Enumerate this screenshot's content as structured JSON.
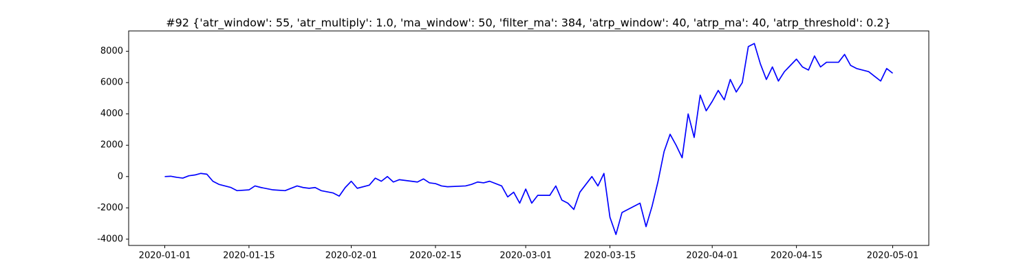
{
  "chart_data": {
    "type": "line",
    "title": "#92 {'atr_window': 55, 'atr_multiply': 1.0, 'ma_window': 50, 'filter_ma': 384, 'atrp_window': 40, 'atrp_ma': 40, 'atrp_threshold': 0.2}",
    "x": [
      "2020-01-01",
      "2020-01-02",
      "2020-01-03",
      "2020-01-04",
      "2020-01-05",
      "2020-01-06",
      "2020-01-07",
      "2020-01-08",
      "2020-01-09",
      "2020-01-10",
      "2020-01-12",
      "2020-01-13",
      "2020-01-15",
      "2020-01-16",
      "2020-01-17",
      "2020-01-19",
      "2020-01-21",
      "2020-01-23",
      "2020-01-24",
      "2020-01-25",
      "2020-01-26",
      "2020-01-27",
      "2020-01-29",
      "2020-01-30",
      "2020-01-31",
      "2020-02-01",
      "2020-02-02",
      "2020-02-04",
      "2020-02-05",
      "2020-02-06",
      "2020-02-07",
      "2020-02-08",
      "2020-02-09",
      "2020-02-12",
      "2020-02-13",
      "2020-02-14",
      "2020-02-15",
      "2020-02-16",
      "2020-02-17",
      "2020-02-20",
      "2020-02-21",
      "2020-02-22",
      "2020-02-23",
      "2020-02-24",
      "2020-02-26",
      "2020-02-27",
      "2020-02-28",
      "2020-02-29",
      "2020-03-01",
      "2020-03-02",
      "2020-03-03",
      "2020-03-05",
      "2020-03-06",
      "2020-03-07",
      "2020-03-08",
      "2020-03-09",
      "2020-03-10",
      "2020-03-12",
      "2020-03-13",
      "2020-03-14",
      "2020-03-15",
      "2020-03-16",
      "2020-03-17",
      "2020-03-20",
      "2020-03-21",
      "2020-03-22",
      "2020-03-23",
      "2020-03-24",
      "2020-03-25",
      "2020-03-26",
      "2020-03-27",
      "2020-03-28",
      "2020-03-29",
      "2020-03-30",
      "2020-03-31",
      "2020-04-01",
      "2020-04-02",
      "2020-04-03",
      "2020-04-04",
      "2020-04-05",
      "2020-04-06",
      "2020-04-07",
      "2020-04-08",
      "2020-04-09",
      "2020-04-10",
      "2020-04-11",
      "2020-04-12",
      "2020-04-13",
      "2020-04-15",
      "2020-04-16",
      "2020-04-17",
      "2020-04-18",
      "2020-04-19",
      "2020-04-20",
      "2020-04-22",
      "2020-04-23",
      "2020-04-24",
      "2020-04-25",
      "2020-04-26",
      "2020-04-27",
      "2020-04-28",
      "2020-04-29",
      "2020-04-30",
      "2020-05-01"
    ],
    "series": [
      {
        "color": "#0000ff",
        "values": [
          0,
          20,
          -50,
          -100,
          50,
          100,
          200,
          150,
          -300,
          -500,
          -700,
          -900,
          -850,
          -600,
          -700,
          -850,
          -900,
          -600,
          -700,
          -750,
          -700,
          -900,
          -1050,
          -1250,
          -700,
          -300,
          -750,
          -550,
          -100,
          -300,
          0,
          -350,
          -200,
          -350,
          -150,
          -400,
          -450,
          -600,
          -650,
          -600,
          -500,
          -350,
          -400,
          -300,
          -600,
          -1300,
          -1000,
          -1700,
          -800,
          -1700,
          -1200,
          -1200,
          -600,
          -1500,
          -1700,
          -2100,
          -1000,
          0,
          -600,
          200,
          -2600,
          -3700,
          -2300,
          -1700,
          -3200,
          -1900,
          -300,
          1600,
          2700,
          2000,
          1200,
          4000,
          2500,
          5200,
          4200,
          4800,
          5500,
          4900,
          6200,
          5400,
          6000,
          8300,
          8500,
          7200,
          6200,
          7000,
          6100,
          6700,
          7500,
          7000,
          6800,
          7700,
          7000,
          7300,
          7300,
          7800,
          7100,
          6900,
          6800,
          6700,
          6400,
          6100,
          6900,
          6600
        ]
      }
    ],
    "xlim": [
      "2019-12-26",
      "2020-05-07"
    ],
    "xticks": [
      "2020-01-01",
      "2020-01-15",
      "2020-02-01",
      "2020-02-15",
      "2020-03-01",
      "2020-03-15",
      "2020-04-01",
      "2020-04-15",
      "2020-05-01"
    ],
    "ylim": [
      -4400,
      9300
    ],
    "yticks": [
      -4000,
      -2000,
      0,
      2000,
      4000,
      6000,
      8000
    ]
  }
}
